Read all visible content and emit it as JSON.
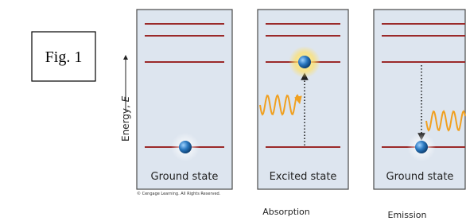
{
  "figure_label": "Fig. 1",
  "axis": {
    "label": "Energy,",
    "symbol": "E"
  },
  "panels": [
    {
      "state": "Ground state"
    },
    {
      "state": "Excited state"
    },
    {
      "state": "Ground state"
    }
  ],
  "captions": {
    "absorption": "Absorption",
    "emission": "Emission"
  },
  "copyright": "© Cengage Learning. All Rights Reserved."
}
